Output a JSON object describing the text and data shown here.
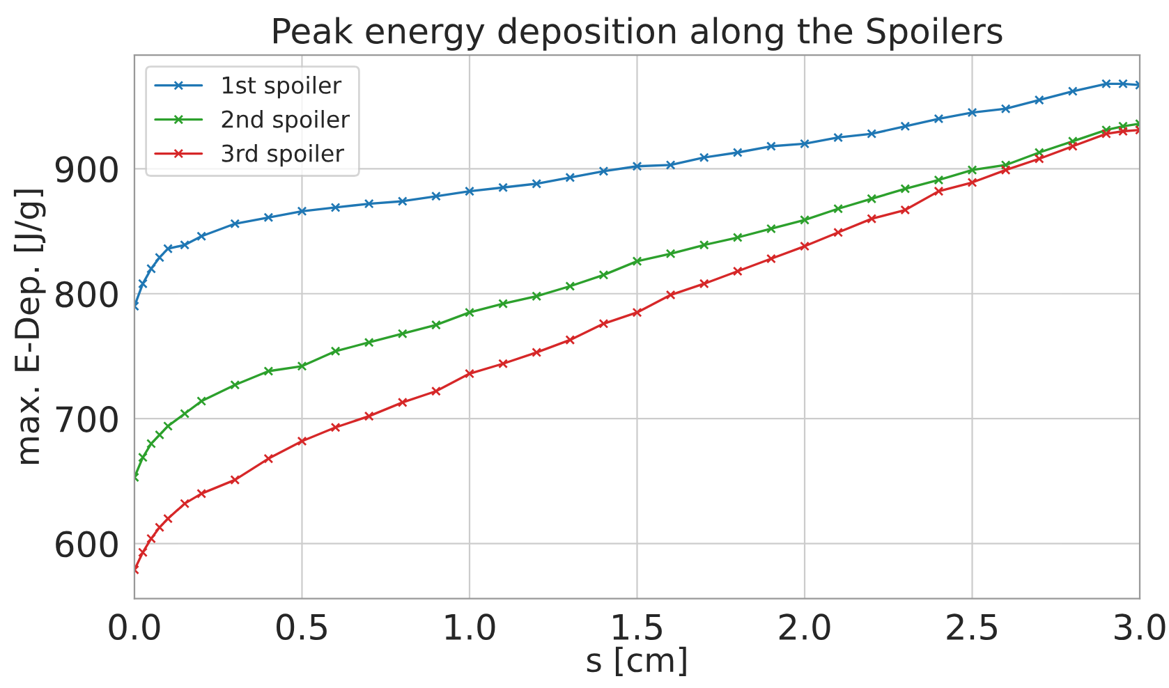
{
  "chart_data": {
    "type": "line",
    "title": "Peak energy deposition along the Spoilers",
    "xlabel": "s [cm]",
    "ylabel": "max. E-Dep. [J/g]",
    "xlim": [
      0,
      3.0
    ],
    "xticks": [
      {
        "value": 0,
        "label": "0.0"
      },
      0.5,
      {
        "value": 1,
        "label": "1.0"
      },
      1.5,
      {
        "value": 2,
        "label": "2.0"
      },
      2.5,
      {
        "value": 3,
        "label": "3.0"
      }
    ],
    "ylim": [
      556,
      991
    ],
    "yticks": [
      600,
      700,
      800,
      900
    ],
    "grid": true,
    "legend": "top left",
    "marker": "cross",
    "line_style": "solid",
    "x": [
      0,
      0.025,
      0.05,
      0.075,
      0.1,
      0.15,
      0.2,
      0.3,
      0.4,
      0.5,
      0.6,
      0.7,
      0.8,
      0.9,
      1.0,
      1.1,
      1.2,
      1.3,
      1.4,
      1.5,
      1.6,
      1.7,
      1.8,
      1.9,
      2.0,
      2.1,
      2.2,
      2.3,
      2.4,
      2.5,
      2.6,
      2.7,
      2.8,
      2.9,
      2.95,
      3.0
    ],
    "series": [
      {
        "name": "1st spoiler",
        "color": "#1f77b4",
        "values": [
          790,
          808,
          820,
          829,
          836,
          839,
          846,
          856,
          861,
          866,
          869,
          872,
          874,
          878,
          882,
          885,
          888,
          893,
          898,
          902,
          903,
          909,
          913,
          918,
          920,
          925,
          928,
          934,
          940,
          945,
          948,
          955,
          962,
          968,
          968,
          967
        ]
      },
      {
        "name": "2nd spoiler",
        "color": "#2ca02c",
        "values": [
          653,
          669,
          680,
          687,
          694,
          704,
          714,
          727,
          738,
          742,
          754,
          761,
          768,
          775,
          785,
          792,
          798,
          806,
          815,
          826,
          832,
          839,
          845,
          852,
          859,
          868,
          876,
          884,
          891,
          899,
          903,
          913,
          922,
          931,
          934,
          936
        ]
      },
      {
        "name": "3rd spoiler",
        "color": "#d62728",
        "values": [
          579,
          593,
          604,
          613,
          620,
          632,
          640,
          651,
          668,
          682,
          693,
          702,
          713,
          722,
          736,
          744,
          753,
          763,
          776,
          785,
          799,
          808,
          818,
          828,
          838,
          849,
          860,
          867,
          882,
          889,
          899,
          908,
          918,
          928,
          930,
          931
        ]
      }
    ]
  }
}
